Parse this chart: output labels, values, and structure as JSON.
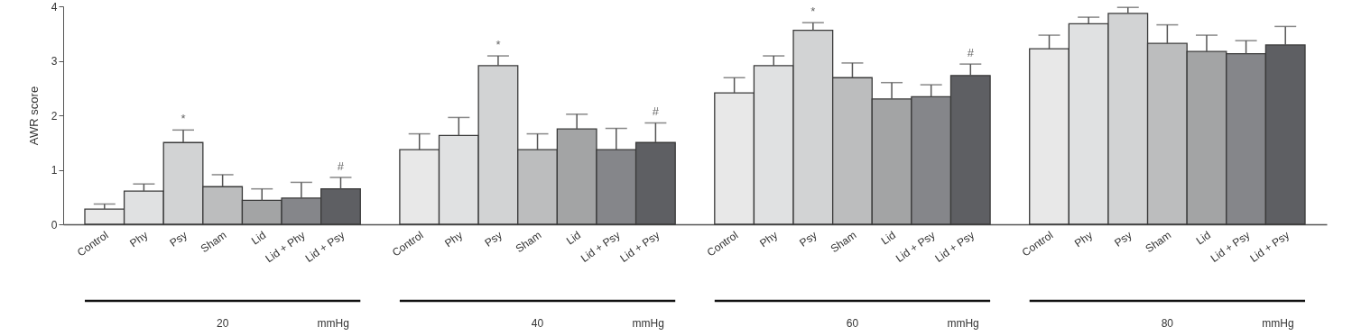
{
  "chart_data": {
    "type": "bar",
    "ylabel": "AWR score",
    "categories": [
      "Control",
      "Phy",
      "Psy",
      "Sham",
      "Lid",
      "Lid + Phy",
      "Lid + Psy",
      null,
      "Control",
      "Phy",
      "Psy",
      "Sham",
      "Lid",
      "Lid + Psy",
      "Lid + Psy",
      null,
      "Control",
      "Phy",
      "Psy",
      "Sham",
      "Lid",
      "Lid + Psy",
      "Lid + Psy",
      null,
      "Control",
      "Phy",
      "Psy",
      "Sham",
      "Lid",
      "Lid + Psy",
      "Lid + Psy"
    ],
    "values": [
      0.28,
      0.61,
      1.5,
      0.69,
      0.44,
      0.48,
      0.65,
      null,
      1.37,
      1.63,
      2.91,
      1.37,
      1.75,
      1.37,
      1.5,
      null,
      2.41,
      2.91,
      3.56,
      2.69,
      2.3,
      2.34,
      2.73,
      null,
      3.22,
      3.68,
      3.87,
      3.32,
      3.17,
      3.13,
      3.29
    ],
    "errors": [
      [
        0.28,
        0.37
      ],
      [
        0.61,
        0.74
      ],
      [
        1.5,
        1.73
      ],
      [
        0.69,
        0.91
      ],
      [
        0.44,
        0.65
      ],
      [
        0.48,
        0.77
      ],
      [
        0.65,
        0.86
      ],
      null,
      [
        1.37,
        1.66
      ],
      [
        1.63,
        1.96
      ],
      [
        2.91,
        3.09
      ],
      [
        1.37,
        1.66
      ],
      [
        1.75,
        2.02
      ],
      [
        1.37,
        1.76
      ],
      [
        1.5,
        1.86
      ],
      null,
      [
        2.41,
        2.69
      ],
      [
        2.91,
        3.09
      ],
      [
        3.56,
        3.7
      ],
      [
        2.69,
        2.96
      ],
      [
        2.3,
        2.6
      ],
      [
        2.34,
        2.56
      ],
      [
        2.73,
        2.94
      ],
      null,
      [
        3.22,
        3.47
      ],
      [
        3.68,
        3.8
      ],
      [
        3.87,
        3.98
      ],
      [
        3.32,
        3.66
      ],
      [
        3.17,
        3.47
      ],
      [
        3.13,
        3.37
      ],
      [
        3.29,
        3.63
      ]
    ],
    "colors": [
      "#e8e8e8",
      "#e0e1e2",
      "#d2d3d4",
      "#bcbdbe",
      "#a3a4a5",
      "#85868a",
      "#5e5f63",
      null,
      "#e8e8e8",
      "#e0e1e2",
      "#d2d3d4",
      "#bcbdbe",
      "#a3a4a5",
      "#85868a",
      "#5e5f63",
      null,
      "#e8e8e8",
      "#e0e1e2",
      "#d2d3d4",
      "#bcbdbe",
      "#a3a4a5",
      "#85868a",
      "#5e5f63",
      null,
      "#e8e8e8",
      "#e0e1e2",
      "#d2d3d4",
      "#bcbdbe",
      "#a3a4a5",
      "#85868a",
      "#5e5f63"
    ],
    "ylim": [
      0,
      4
    ],
    "yticks": [
      0,
      1,
      2,
      3,
      4
    ],
    "annotations": [
      "*",
      "#",
      "*",
      "#",
      "*",
      "#",
      "20",
      "mmHg",
      "40",
      "mmHg",
      "60",
      "mmHg",
      "80",
      "mmHg"
    ]
  }
}
